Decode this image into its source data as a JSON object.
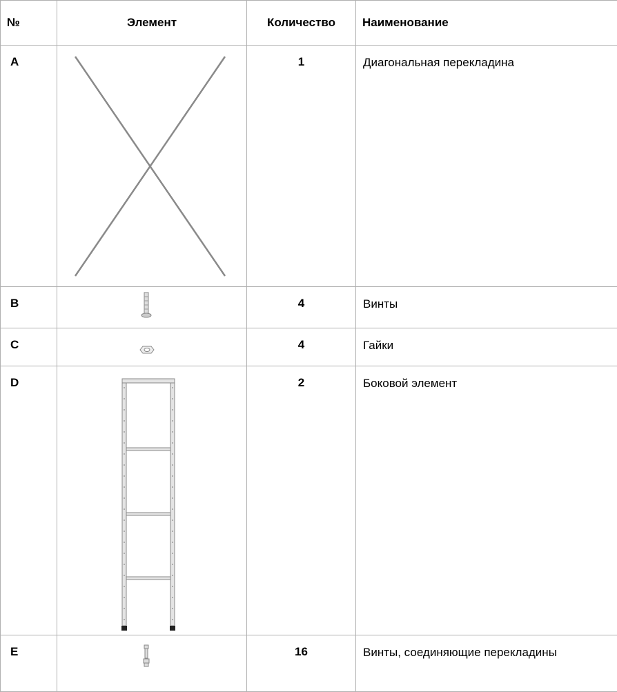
{
  "header": {
    "columns": [
      "№",
      "Элемент",
      "Количество",
      "Наименование"
    ]
  },
  "table": {
    "rows": [
      [
        "A",
        1,
        "Диагональная перекладина"
      ],
      [
        "B",
        4,
        "Винты"
      ],
      [
        "C",
        4,
        "Гайки"
      ],
      [
        "D",
        2,
        "Боковой элемент"
      ],
      [
        "E",
        16,
        "Винты, соединяющие перекладины"
      ]
    ]
  }
}
